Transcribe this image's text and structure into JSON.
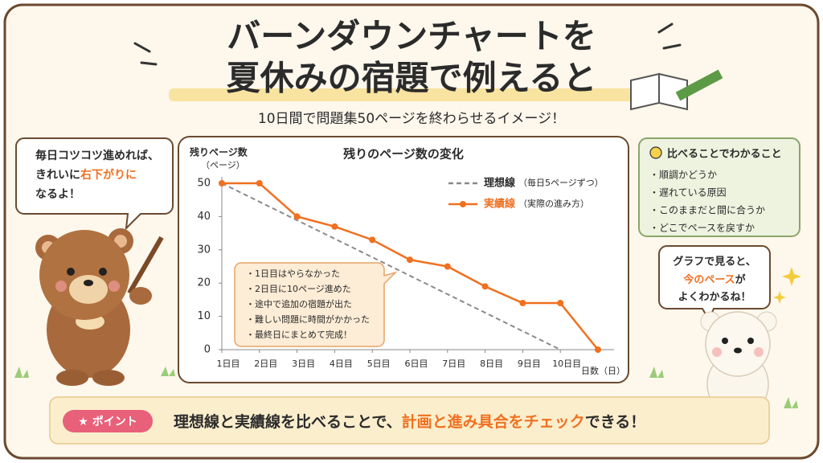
{
  "title": [
    "バーンダウンチャートを",
    "夏休みの宿題で例えると"
  ],
  "subtitle": "10日間で問題集50ページを終わらせるイメージ！",
  "left_bubble": {
    "line1": "毎日コツコツ進めれば、",
    "line2a": "きれいに",
    "line2b": "右下がりに",
    "line3": "なるよ！"
  },
  "chart_data": {
    "type": "line",
    "title": "残りのページ数の変化",
    "y_label": "残りページ数",
    "y_unit": "（ページ）",
    "x_label": "日数（日）",
    "xlim": [
      1,
      11
    ],
    "xticks": [
      {
        "value": 1,
        "label": "1日目"
      },
      {
        "value": 2,
        "label": "2日目"
      },
      {
        "value": 3,
        "label": "3日目"
      },
      {
        "value": 4,
        "label": "4日目"
      },
      {
        "value": 5,
        "label": "5日目"
      },
      {
        "value": 6,
        "label": "6日目"
      },
      {
        "value": 7,
        "label": "7日目"
      },
      {
        "value": 8,
        "label": "8日目"
      },
      {
        "value": 9,
        "label": "9日目"
      },
      {
        "value": 10,
        "label": "10日目"
      }
    ],
    "ylim": [
      0,
      50
    ],
    "yticks": [
      0,
      10,
      20,
      30,
      40,
      50
    ],
    "series": [
      {
        "name": "理想線",
        "note": "（毎日5ページずつ）",
        "color": "#8a8a8a",
        "dashed": true,
        "x": [
          1,
          10
        ],
        "values": [
          50,
          0
        ]
      },
      {
        "name": "実績線",
        "note": "（実際の進み方）",
        "color": "#f07020",
        "dashed": false,
        "x": [
          1,
          2,
          3,
          4,
          5,
          6,
          7,
          8,
          9,
          10,
          11
        ],
        "values": [
          50,
          50,
          40,
          37,
          33,
          27,
          25,
          19,
          14,
          14,
          0
        ]
      }
    ],
    "annotations": [
      "・1日目はやらなかった",
      "・2日目に10ページ進めた",
      "・途中で追加の宿題が出た",
      "・難しい問題に時間がかかった",
      "・最終日にまとめて完成！"
    ]
  },
  "notes_box": {
    "title": "比べることでわかること",
    "items": [
      "・順調かどうか",
      "・遅れている原因",
      "・このままだと間に合うか",
      "・どこでペースを戻すか"
    ]
  },
  "right_bubble": {
    "line1": "グラフで見ると、",
    "line2a": "今のペース",
    "line2b": "が",
    "line3": "よくわかるね！"
  },
  "point": {
    "badge": "★ ポイント",
    "text_a": "理想線と実績線を比べることで、",
    "text_b": "計画と進み具合をチェック",
    "text_c": "できる！"
  }
}
